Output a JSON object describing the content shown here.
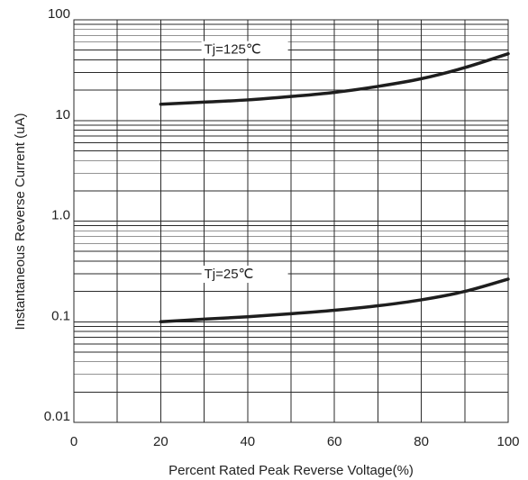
{
  "chart_data": {
    "type": "line",
    "xlabel": "Percent Rated Peak Reverse Voltage(%)",
    "ylabel": "Instantaneous Reverse Current (uA)",
    "xlim": [
      0,
      100
    ],
    "ylim": [
      0.01,
      100
    ],
    "yscale": "log",
    "grid": true,
    "x_ticks": [
      {
        "value": 0,
        "label": "0"
      },
      {
        "value": 20,
        "label": "20"
      },
      {
        "value": 40,
        "label": "40"
      },
      {
        "value": 60,
        "label": "60"
      },
      {
        "value": 80,
        "label": "80"
      },
      {
        "value": 100,
        "label": "100"
      }
    ],
    "y_ticks": [
      {
        "value": 0.01,
        "label": "0.01"
      },
      {
        "value": 0.1,
        "label": "0.1"
      },
      {
        "value": 1,
        "label": "1.0"
      },
      {
        "value": 10,
        "label": "10"
      },
      {
        "value": 100,
        "label": "100"
      }
    ],
    "series": [
      {
        "name": "Tj=125℃",
        "label_at": {
          "x": 30,
          "y": 46
        },
        "x": [
          20,
          30,
          40,
          50,
          60,
          70,
          80,
          90,
          100
        ],
        "y": [
          14.5,
          15.2,
          16.0,
          17.3,
          19.0,
          21.8,
          26.0,
          33.5,
          46.0
        ]
      },
      {
        "name": "Tj=25℃",
        "label_at": {
          "x": 30,
          "y": 0.27
        },
        "x": [
          20,
          30,
          40,
          50,
          60,
          70,
          80,
          90,
          100
        ],
        "y": [
          0.1,
          0.106,
          0.112,
          0.12,
          0.13,
          0.144,
          0.165,
          0.2,
          0.265
        ]
      }
    ]
  }
}
